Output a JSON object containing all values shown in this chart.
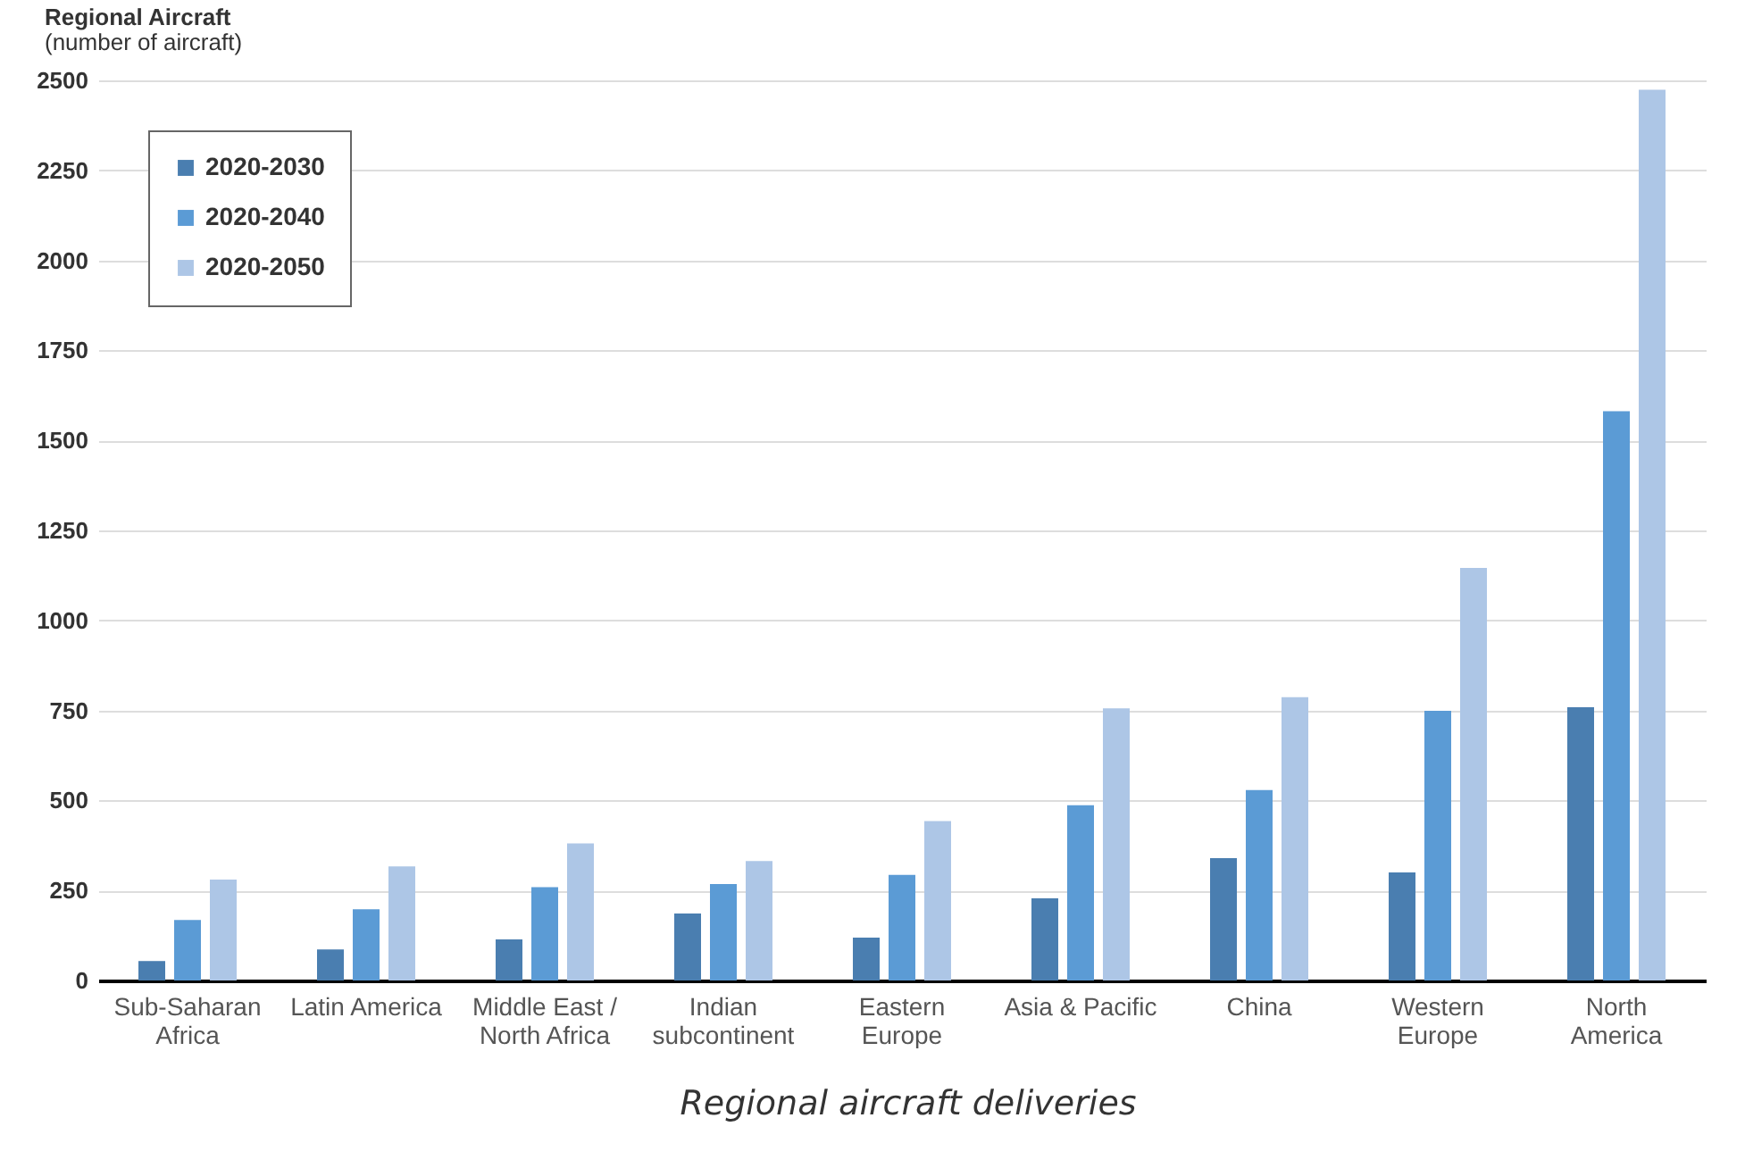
{
  "chart_data": {
    "type": "bar",
    "title": "Regional Aircraft",
    "subtitle": "(number of aircraft)",
    "categories": [
      "Sub-Saharan\nAfrica",
      "Latin America",
      "Middle East /\nNorth Africa",
      "Indian\nsubcontinent",
      "Eastern\nEurope",
      "Asia & Pacific",
      "China",
      "Western\nEurope",
      "North\nAmerica"
    ],
    "series": [
      {
        "name": "2020-2030",
        "color": "#4a7eb0",
        "values": [
          54,
          86,
          114,
          186,
          119,
          228,
          340,
          300,
          759
        ]
      },
      {
        "name": "2020-2040",
        "color": "#5b9bd5",
        "values": [
          168,
          198,
          259,
          268,
          293,
          487,
          529,
          749,
          1581
        ]
      },
      {
        "name": "2020-2050",
        "color": "#adc6e6",
        "values": [
          280,
          317,
          381,
          332,
          443,
          756,
          787,
          1146,
          2474
        ]
      }
    ],
    "ylim": [
      0,
      2500
    ],
    "yticks": [
      0,
      250,
      500,
      750,
      1000,
      1250,
      1500,
      1750,
      2000,
      2250,
      2500
    ],
    "grid": "y",
    "legend": "top left",
    "annotations": [
      "Regional aircraft deliveries"
    ]
  }
}
